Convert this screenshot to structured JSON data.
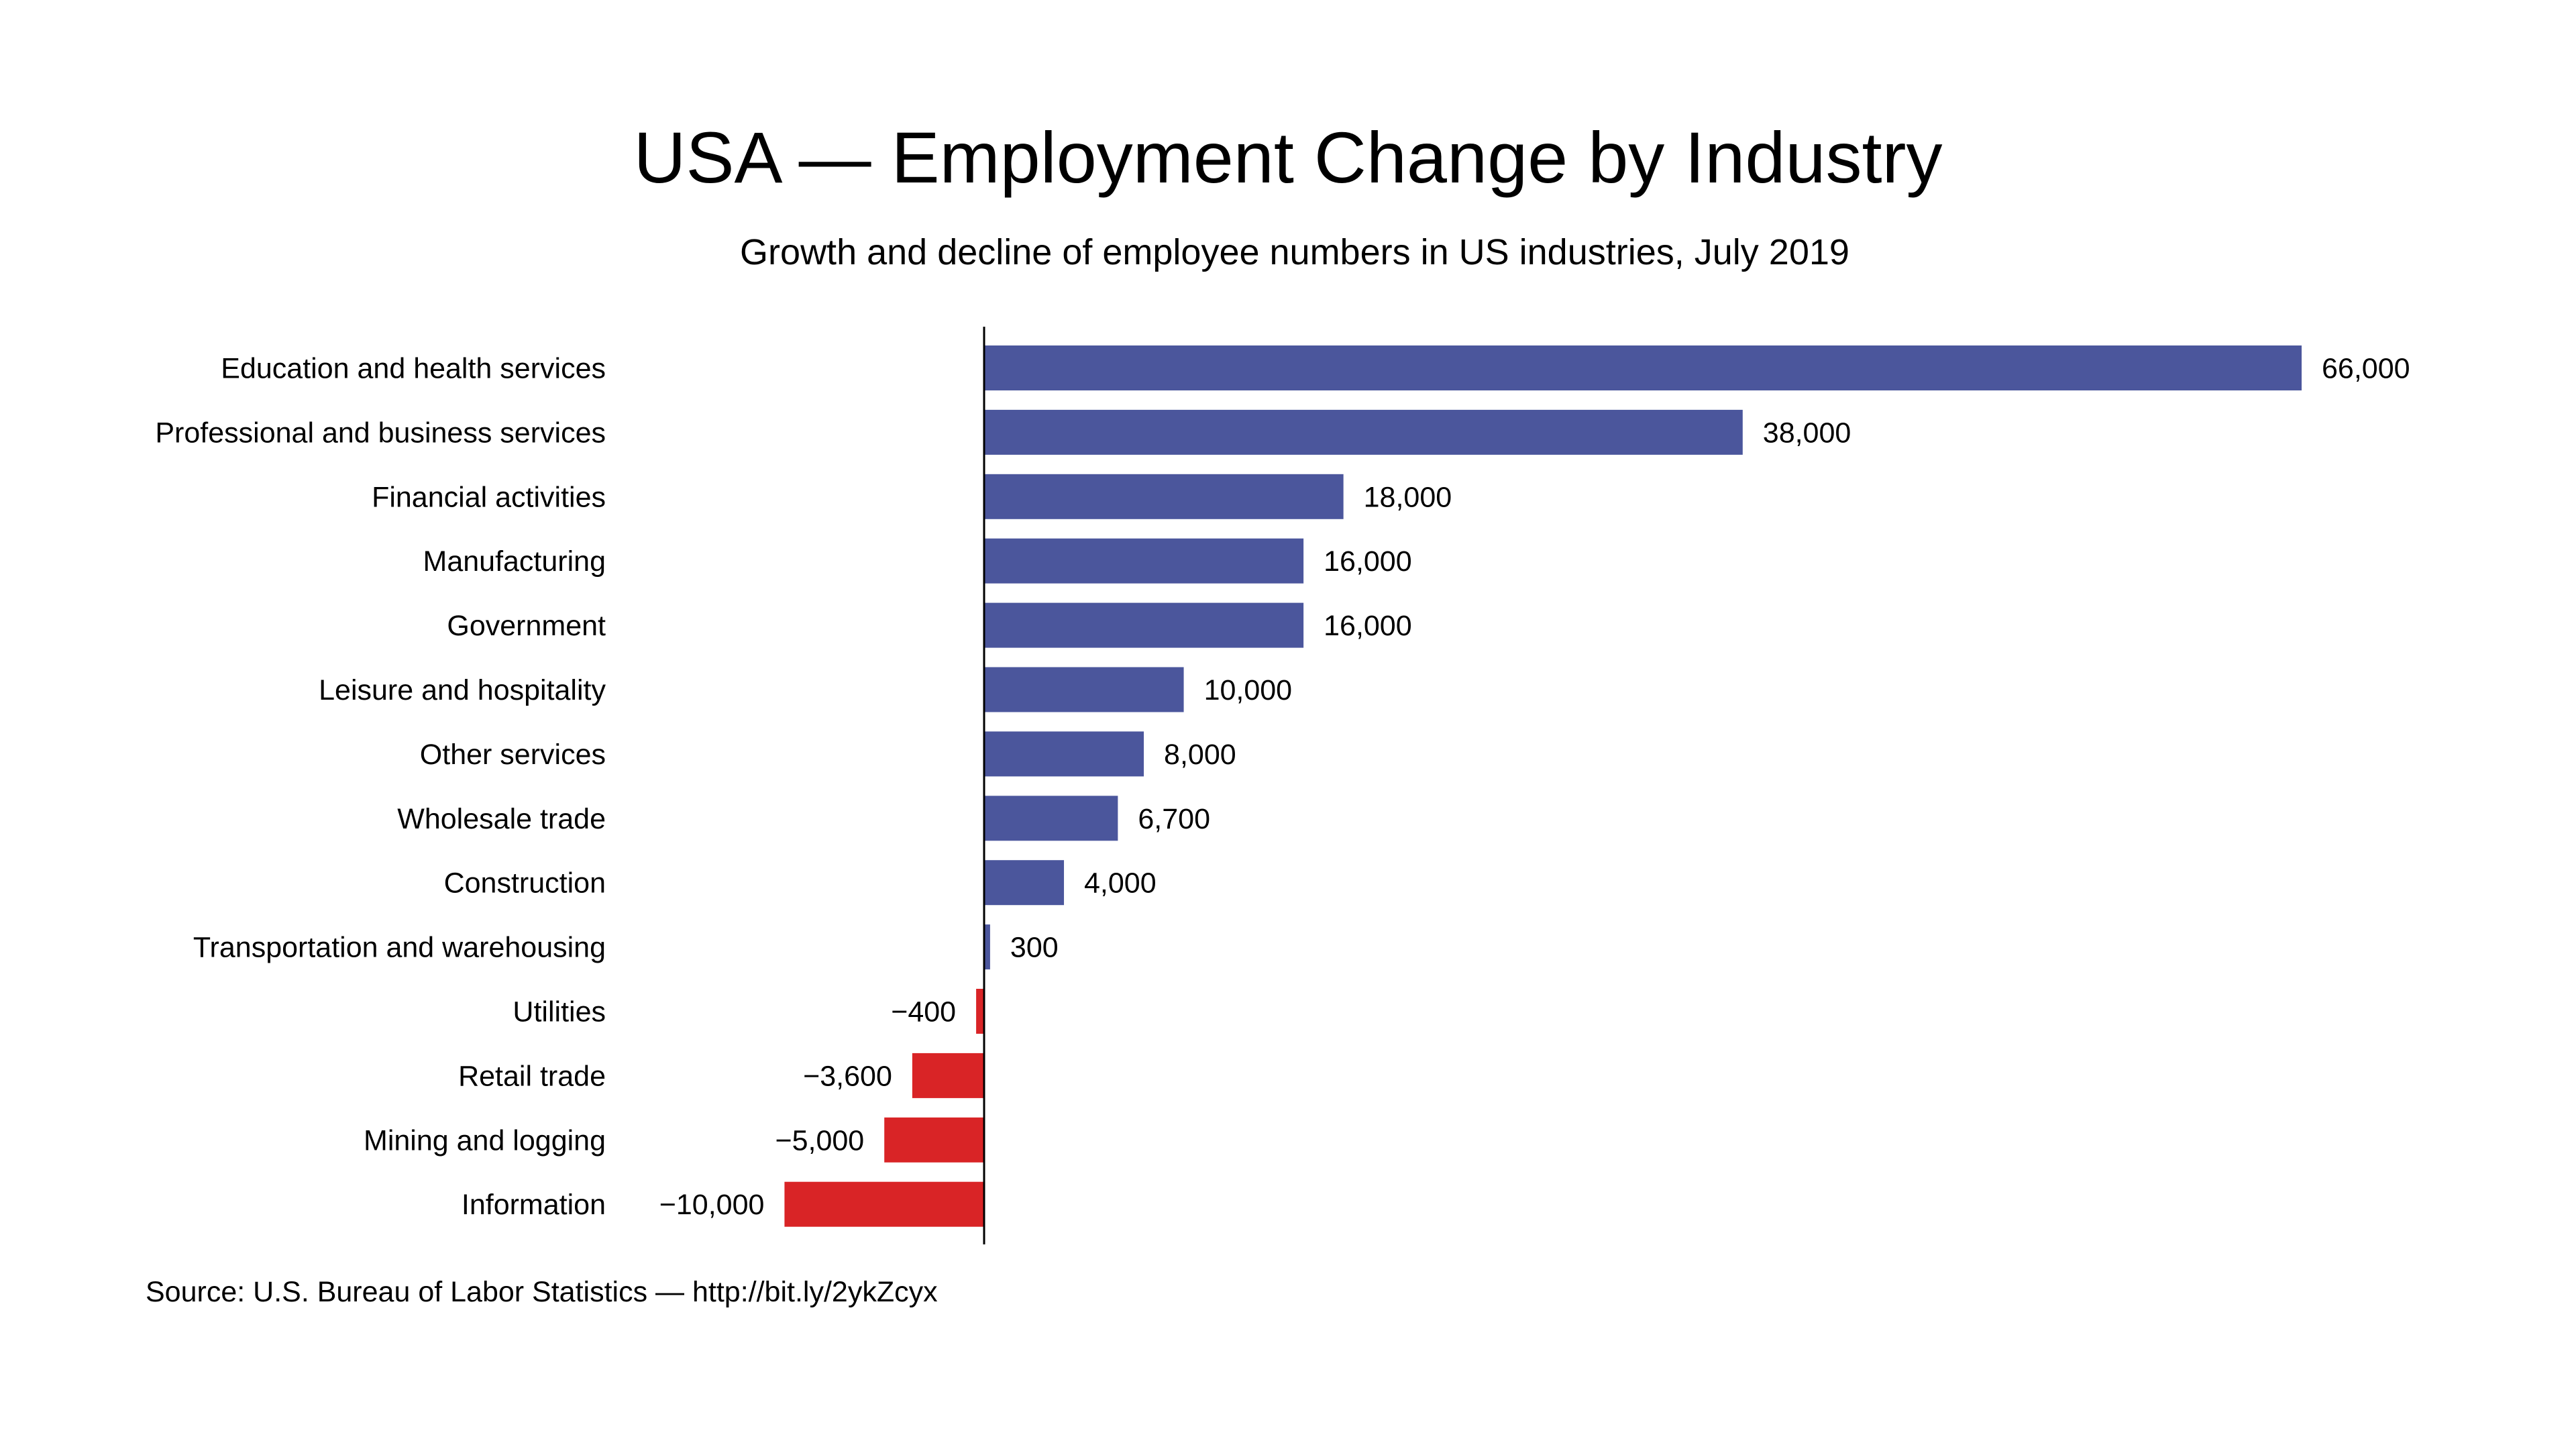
{
  "chart_data": {
    "type": "bar",
    "orientation": "horizontal",
    "title": "USA — Employment Change by Industry",
    "subtitle": "Growth and decline of employee numbers in US industries, July 2019",
    "source": "Source: U.S. Bureau of Labor Statistics — http://bit.ly/2ykZcyx",
    "categories": [
      "Education and health services",
      "Professional and business services",
      "Financial activities",
      "Manufacturing",
      "Government",
      "Leisure and hospitality",
      "Other services",
      "Wholesale trade",
      "Construction",
      "Transportation and warehousing",
      "Utilities",
      "Retail trade",
      "Mining and logging",
      "Information"
    ],
    "values": [
      66000,
      38000,
      18000,
      16000,
      16000,
      10000,
      8000,
      6700,
      4000,
      300,
      -400,
      -3600,
      -5000,
      -10000
    ],
    "value_labels": [
      "66,000",
      "38,000",
      "18,000",
      "16,000",
      "16,000",
      "10,000",
      "8,000",
      "6,700",
      "4,000",
      "300",
      "−400",
      "−3,600",
      "−5,000",
      "−10,000"
    ],
    "xlim": [
      -10000,
      66000
    ],
    "grid": false,
    "legend": "none",
    "colors": {
      "positive": "#4b569c",
      "negative": "#d92426"
    }
  }
}
